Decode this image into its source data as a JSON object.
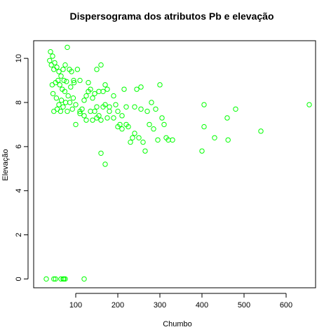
{
  "chart_data": {
    "type": "scatter",
    "title": "Dispersograma dos atributos Pb e elevação",
    "xlabel": "Chumbo",
    "ylabel": "Elevação",
    "xlim": [
      0,
      670
    ],
    "ylim": [
      -0.4,
      10.8
    ],
    "xticks": [
      100,
      200,
      300,
      400,
      500,
      600
    ],
    "yticks": [
      0,
      2,
      4,
      6,
      8,
      10
    ],
    "grid": false,
    "point_color": "#00ff00",
    "series": [
      {
        "points": [
          [
            40,
            10.3
          ],
          [
            45,
            10.1
          ],
          [
            38,
            9.9
          ],
          [
            50,
            9.8
          ],
          [
            42,
            9.7
          ],
          [
            55,
            9.6
          ],
          [
            48,
            9.5
          ],
          [
            60,
            9.4
          ],
          [
            70,
            9.5
          ],
          [
            75,
            9.7
          ],
          [
            80,
            10.5
          ],
          [
            65,
            9.2
          ],
          [
            58,
            9.0
          ],
          [
            52,
            8.9
          ],
          [
            72,
            9.0
          ],
          [
            78,
            8.95
          ],
          [
            85,
            9.5
          ],
          [
            90,
            9.4
          ],
          [
            95,
            9.0
          ],
          [
            62,
            8.8
          ],
          [
            68,
            8.6
          ],
          [
            74,
            8.5
          ],
          [
            82,
            8.3
          ],
          [
            46,
            8.4
          ],
          [
            54,
            8.2
          ],
          [
            66,
            8.1
          ],
          [
            76,
            8.0
          ],
          [
            88,
            8.7
          ],
          [
            96,
            8.9
          ],
          [
            44,
            8.8
          ],
          [
            104,
            9.5
          ],
          [
            110,
            9.0
          ],
          [
            60,
            7.9
          ],
          [
            70,
            7.8
          ],
          [
            80,
            7.6
          ],
          [
            92,
            7.7
          ],
          [
            100,
            7.9
          ],
          [
            48,
            7.6
          ],
          [
            56,
            7.7
          ],
          [
            64,
            7.6
          ],
          [
            86,
            8.0
          ],
          [
            94,
            8.2
          ],
          [
            110,
            7.5
          ],
          [
            115,
            7.7
          ],
          [
            120,
            8.1
          ],
          [
            125,
            8.3
          ],
          [
            130,
            8.9
          ],
          [
            135,
            8.6
          ],
          [
            140,
            8.2
          ],
          [
            145,
            8.4
          ],
          [
            150,
            9.5
          ],
          [
            155,
            8.5
          ],
          [
            160,
            9.7
          ],
          [
            165,
            8.5
          ],
          [
            170,
            8.8
          ],
          [
            175,
            8.6
          ],
          [
            145,
            7.6
          ],
          [
            150,
            7.8
          ],
          [
            160,
            7.2
          ],
          [
            165,
            7.8
          ],
          [
            125,
            7.2
          ],
          [
            135,
            7.6
          ],
          [
            140,
            7.2
          ],
          [
            150,
            7.3
          ],
          [
            155,
            7.4
          ],
          [
            170,
            7.9
          ],
          [
            175,
            7.3
          ],
          [
            180,
            7.6
          ],
          [
            190,
            8.3
          ],
          [
            195,
            7.9
          ],
          [
            200,
            7.6
          ],
          [
            205,
            7.0
          ],
          [
            210,
            7.4
          ],
          [
            215,
            8.6
          ],
          [
            220,
            7.8
          ],
          [
            225,
            6.9
          ],
          [
            230,
            6.2
          ],
          [
            235,
            6.4
          ],
          [
            240,
            7.8
          ],
          [
            245,
            8.6
          ],
          [
            250,
            6.4
          ],
          [
            255,
            8.7
          ],
          [
            260,
            6.2
          ],
          [
            265,
            5.8
          ],
          [
            270,
            7.6
          ],
          [
            275,
            7.0
          ],
          [
            280,
            8.0
          ],
          [
            285,
            6.8
          ],
          [
            290,
            7.7
          ],
          [
            295,
            6.3
          ],
          [
            300,
            8.8
          ],
          [
            305,
            7.3
          ],
          [
            310,
            7.0
          ],
          [
            315,
            6.4
          ],
          [
            320,
            6.3
          ],
          [
            330,
            6.3
          ],
          [
            160,
            5.7
          ],
          [
            170,
            5.2
          ],
          [
            200,
            6.9
          ],
          [
            210,
            6.8
          ],
          [
            190,
            7.3
          ],
          [
            220,
            7.0
          ],
          [
            240,
            6.6
          ],
          [
            120,
            7.4
          ],
          [
            110,
            7.6
          ],
          [
            100,
            7.0
          ],
          [
            130,
            8.5
          ],
          [
            180,
            7.8
          ],
          [
            255,
            7.7
          ],
          [
            400,
            5.8
          ],
          [
            405,
            7.9
          ],
          [
            405,
            6.9
          ],
          [
            430,
            6.4
          ],
          [
            460,
            7.3
          ],
          [
            462,
            6.3
          ],
          [
            480,
            7.7
          ],
          [
            540,
            6.7
          ],
          [
            655,
            7.9
          ],
          [
            30,
            0
          ],
          [
            48,
            0
          ],
          [
            52,
            0
          ],
          [
            65,
            0
          ],
          [
            70,
            0
          ],
          [
            72,
            0
          ],
          [
            75,
            0
          ],
          [
            120,
            0
          ]
        ]
      }
    ]
  }
}
